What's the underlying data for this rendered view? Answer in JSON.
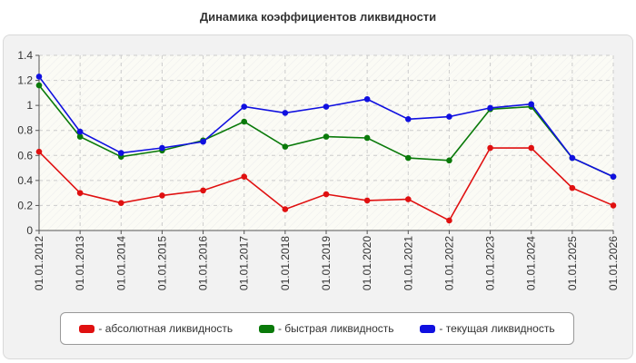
{
  "chart_data": {
    "type": "line",
    "title": "Динамика коэффициентов ликвидности",
    "x": [
      "01.01.2012",
      "01.01.2013",
      "01.01.2014",
      "01.01.2015",
      "01.01.2016",
      "01.01.2017",
      "01.01.2018",
      "01.01.2019",
      "01.01.2020",
      "01.01.2021",
      "01.01.2022",
      "01.01.2023",
      "01.01.2024",
      "01.01.2025",
      "01.01.2026"
    ],
    "ylim": [
      0,
      1.4
    ],
    "yticks": [
      "0",
      "0.2",
      "0.4",
      "0.6",
      "0.8",
      "1",
      "1.2",
      "1.4"
    ],
    "grid": true,
    "legend_position": "bottom",
    "series": [
      {
        "name": "- абсолютная ликвидность",
        "color": "#e01010",
        "values": [
          0.63,
          0.3,
          0.22,
          0.28,
          0.32,
          0.43,
          0.17,
          0.29,
          0.24,
          0.25,
          0.08,
          0.66,
          0.66,
          0.34,
          0.2
        ]
      },
      {
        "name": "- быстрая ликвидность",
        "color": "#0a7a0a",
        "values": [
          1.16,
          0.75,
          0.59,
          0.64,
          0.72,
          0.87,
          0.67,
          0.75,
          0.74,
          0.58,
          0.56,
          0.97,
          0.99,
          0.58,
          0.43
        ]
      },
      {
        "name": "- текущая ликвидность",
        "color": "#1010e0",
        "values": [
          1.23,
          0.79,
          0.62,
          0.66,
          0.71,
          0.99,
          0.94,
          0.99,
          1.05,
          0.89,
          0.91,
          0.98,
          1.01,
          0.58,
          0.43
        ]
      }
    ]
  }
}
